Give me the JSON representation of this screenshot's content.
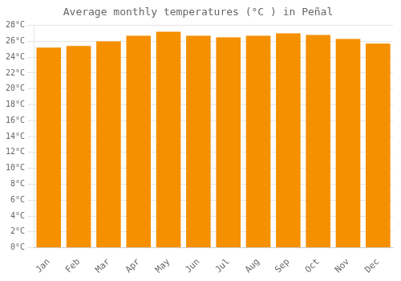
{
  "chart_data": {
    "type": "bar",
    "title": "Average monthly temperatures (°C ) in Peñal",
    "categories": [
      "Jan",
      "Feb",
      "Mar",
      "Apr",
      "May",
      "Jun",
      "Jul",
      "Aug",
      "Sep",
      "Oct",
      "Nov",
      "Dec"
    ],
    "values": [
      25.2,
      25.4,
      26.0,
      26.7,
      27.2,
      26.7,
      26.5,
      26.7,
      27.0,
      26.8,
      26.3,
      25.7
    ],
    "color": "#F59000",
    "ylim": [
      0,
      28
    ],
    "yticks": [
      {
        "value": 0,
        "label": "0°C"
      },
      {
        "value": 2,
        "label": "2°C"
      },
      {
        "value": 4,
        "label": "4°C"
      },
      {
        "value": 6,
        "label": "6°C"
      },
      {
        "value": 8,
        "label": "8°C"
      },
      {
        "value": 10,
        "label": "10°C"
      },
      {
        "value": 12,
        "label": "12°C"
      },
      {
        "value": 14,
        "label": "14°C"
      },
      {
        "value": 16,
        "label": "16°C"
      },
      {
        "value": 18,
        "label": "18°C"
      },
      {
        "value": 20,
        "label": "20°C"
      },
      {
        "value": 22,
        "label": "22°C"
      },
      {
        "value": 24,
        "label": "24°C"
      },
      {
        "value": 26,
        "label": "26°C"
      },
      {
        "value": 28,
        "label": "28°C"
      }
    ],
    "grid": true
  }
}
